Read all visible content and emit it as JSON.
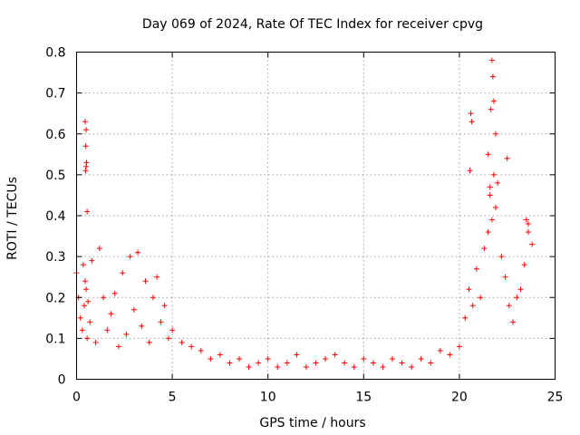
{
  "chart_data": {
    "type": "scatter",
    "title": "Day 069 of 2024, Rate Of TEC Index for receiver cpvg",
    "xlabel": "GPS time / hours",
    "ylabel": "ROTI / TECUs",
    "xlim": [
      0,
      25
    ],
    "ylim": [
      0,
      0.8
    ],
    "xticks": [
      0,
      5,
      10,
      15,
      20,
      25
    ],
    "yticks": [
      0,
      0.1,
      0.2,
      0.3,
      0.4,
      0.5,
      0.6,
      0.7,
      0.8
    ],
    "xtick_labels": [
      "0",
      "5",
      "10",
      "15",
      "20",
      "25"
    ],
    "ytick_labels": [
      "0",
      "0.1",
      "0.2",
      "0.3",
      "0.4",
      "0.5",
      "0.6",
      "0.7",
      "0.8"
    ],
    "grid": true,
    "marker": "+",
    "color": "#ff0000",
    "series": [
      {
        "name": "ROTI",
        "envelope_note": "dense scatter; representative points listed",
        "x": [
          0.0,
          0.1,
          0.2,
          0.3,
          0.35,
          0.4,
          0.45,
          0.5,
          0.55,
          0.6,
          0.7,
          0.8,
          1.0,
          1.2,
          1.4,
          1.6,
          1.8,
          2.0,
          2.2,
          2.4,
          2.6,
          2.8,
          3.0,
          3.2,
          3.4,
          3.6,
          3.8,
          4.0,
          4.2,
          4.4,
          4.6,
          4.8,
          5.0,
          5.5,
          6.0,
          6.5,
          7.0,
          7.5,
          8.0,
          8.5,
          9.0,
          9.5,
          10.0,
          10.5,
          11.0,
          11.5,
          12.0,
          12.5,
          13.0,
          13.5,
          14.0,
          14.5,
          15.0,
          15.5,
          16.0,
          16.5,
          17.0,
          17.5,
          18.0,
          18.5,
          19.0,
          19.5,
          20.0,
          20.3,
          20.5,
          20.7,
          20.9,
          21.1,
          21.3,
          21.5,
          21.6,
          21.7,
          21.8,
          21.9,
          22.0,
          22.2,
          22.4,
          22.6,
          22.8,
          23.0,
          23.2,
          23.4,
          23.6,
          23.8,
          0.45,
          0.5,
          0.48,
          0.52,
          0.47,
          0.5,
          0.55,
          21.7,
          21.75,
          21.8,
          21.65,
          21.9,
          20.6,
          20.65,
          20.55,
          22.5,
          23.5,
          23.6,
          21.5,
          21.6
        ],
        "y": [
          0.26,
          0.2,
          0.15,
          0.12,
          0.28,
          0.18,
          0.24,
          0.22,
          0.1,
          0.19,
          0.14,
          0.29,
          0.09,
          0.32,
          0.2,
          0.12,
          0.16,
          0.21,
          0.08,
          0.26,
          0.11,
          0.3,
          0.17,
          0.31,
          0.13,
          0.24,
          0.09,
          0.2,
          0.25,
          0.14,
          0.18,
          0.1,
          0.12,
          0.09,
          0.08,
          0.07,
          0.05,
          0.06,
          0.04,
          0.05,
          0.03,
          0.04,
          0.05,
          0.03,
          0.04,
          0.06,
          0.03,
          0.04,
          0.05,
          0.06,
          0.04,
          0.03,
          0.05,
          0.04,
          0.03,
          0.05,
          0.04,
          0.03,
          0.05,
          0.04,
          0.07,
          0.06,
          0.08,
          0.15,
          0.22,
          0.18,
          0.27,
          0.2,
          0.32,
          0.36,
          0.45,
          0.39,
          0.5,
          0.42,
          0.48,
          0.3,
          0.25,
          0.18,
          0.14,
          0.2,
          0.22,
          0.28,
          0.38,
          0.33,
          0.63,
          0.61,
          0.57,
          0.53,
          0.51,
          0.52,
          0.41,
          0.78,
          0.74,
          0.68,
          0.66,
          0.6,
          0.65,
          0.63,
          0.51,
          0.54,
          0.39,
          0.36,
          0.55,
          0.47
        ]
      }
    ]
  }
}
